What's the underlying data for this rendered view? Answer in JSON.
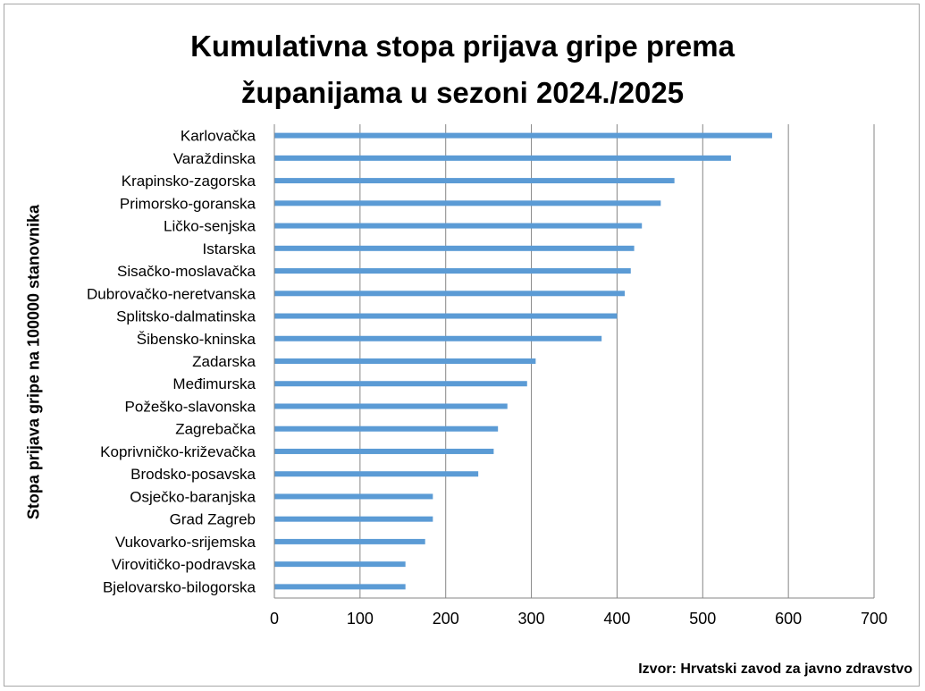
{
  "chart_data": {
    "type": "bar",
    "orientation": "horizontal",
    "title_lines": [
      "Kumulativna stopa prijava gripe prema",
      "županijama u sezoni 2024./2025"
    ],
    "ylabel": "Stopa prijava gripe na 100000 stanovnika",
    "xlabel": "",
    "source": "Izvor: Hrvatski zavod za javno zdravstvo",
    "xlim": [
      0,
      700
    ],
    "xticks": [
      0,
      100,
      200,
      300,
      400,
      500,
      600,
      700
    ],
    "grid": "vertical",
    "bar_color": "#5b9bd5",
    "categories": [
      "Karlovačka",
      "Varaždinska",
      "Krapinsko-zagorska",
      "Primorsko-goranska",
      "Ličko-senjska",
      "Istarska",
      "Sisačko-moslavačka",
      "Dubrovačko-neretvanska",
      "Splitsko-dalmatinska",
      "Šibensko-kninska",
      "Zadarska",
      "Međimurska",
      "Požeško-slavonska",
      "Zagrebačka",
      "Koprivničko-križevačka",
      "Brodsko-posavska",
      "Osječko-baranjska",
      "Grad Zagreb",
      "Vukovarko-srijemska",
      "Virovitičko-podravska",
      "Bjelovarsko-bilogorska"
    ],
    "values": [
      581,
      533,
      467,
      451,
      429,
      420,
      416,
      409,
      400,
      382,
      305,
      295,
      272,
      261,
      256,
      238,
      185,
      185,
      176,
      153,
      153
    ]
  }
}
